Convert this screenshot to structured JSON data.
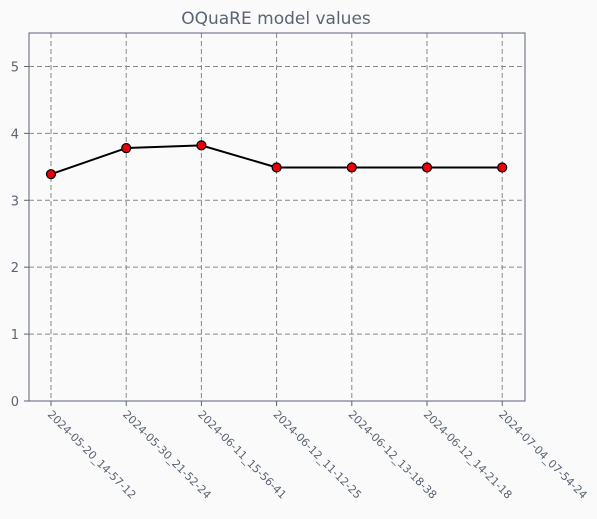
{
  "chart_data": {
    "type": "line",
    "title": "OQuaRE model values",
    "xlabel": "",
    "ylabel": "",
    "categories": [
      "2024-05-20_14-57-12",
      "2024-05-30_21-52-24",
      "2024-06-11_15-56-41",
      "2024-06-12_11-12-25",
      "2024-06-12_13-18-38",
      "2024-06-12_14-21-18",
      "2024-07-04_07-54-24"
    ],
    "series": [
      {
        "values": [
          3.39,
          3.78,
          3.82,
          3.49,
          3.49,
          3.49,
          3.49
        ]
      }
    ],
    "ylim": [
      0,
      5.5
    ],
    "yticks": [
      0,
      1,
      2,
      3,
      4,
      5
    ],
    "grid": true,
    "colors": {
      "line": "#000000",
      "marker_fill": "#e8000b",
      "marker_edge": "#000000",
      "grid": "#888888",
      "axes": "#5b6474",
      "text": "#5b6474",
      "background": "#fafafa"
    }
  }
}
